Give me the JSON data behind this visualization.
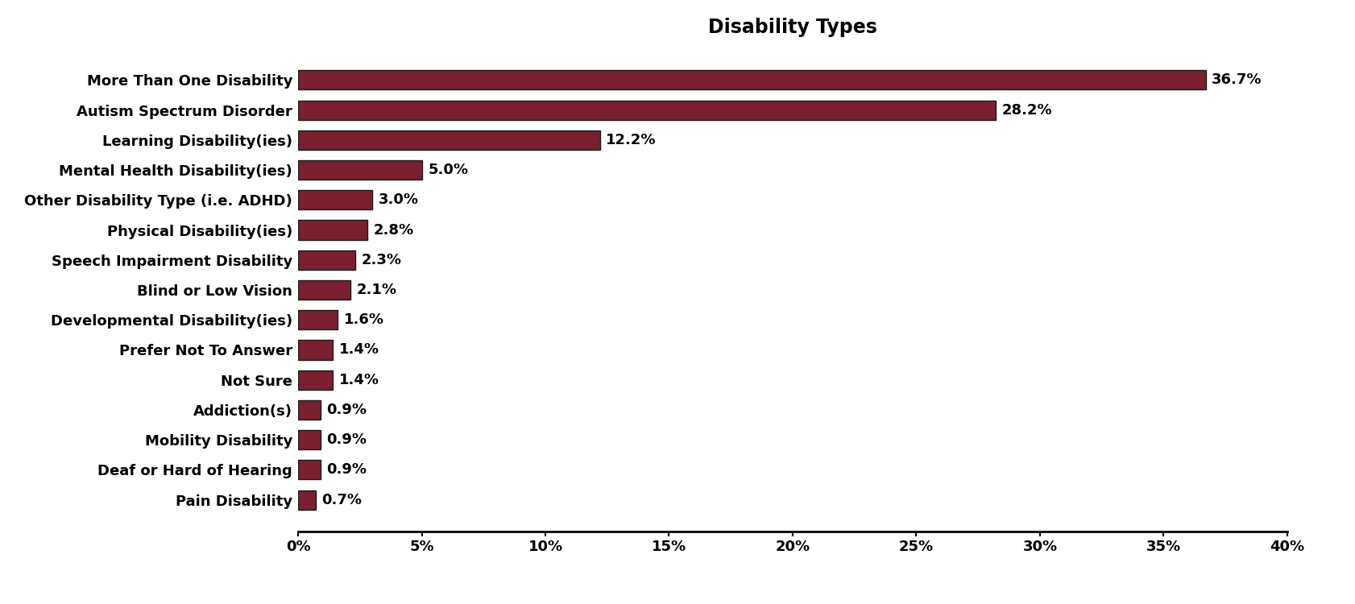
{
  "title": "Disability Types",
  "categories": [
    "Pain Disability",
    "Deaf or Hard of Hearing",
    "Mobility Disability",
    "Addiction(s)",
    "Not Sure",
    "Prefer Not To Answer",
    "Developmental Disability(ies)",
    "Blind or Low Vision",
    "Speech Impairment Disability",
    "Physical Disability(ies)",
    "Other Disability Type (i.e. ADHD)",
    "Mental Health Disability(ies)",
    "Learning Disability(ies)",
    "Autism Spectrum Disorder",
    "More Than One Disability"
  ],
  "values": [
    0.7,
    0.9,
    0.9,
    0.9,
    1.4,
    1.4,
    1.6,
    2.1,
    2.3,
    2.8,
    3.0,
    5.0,
    12.2,
    28.2,
    36.7
  ],
  "labels": [
    "0.7%",
    "0.9%",
    "0.9%",
    "0.9%",
    "1.4%",
    "1.4%",
    "1.6%",
    "2.1%",
    "2.3%",
    "2.8%",
    "3.0%",
    "5.0%",
    "12.2%",
    "28.2%",
    "36.7%"
  ],
  "bar_color": "#7b2030",
  "bar_edgecolor": "#1a1a1a",
  "background_color": "#ffffff",
  "title_fontsize": 17,
  "label_fontsize": 13,
  "tick_fontsize": 13,
  "xlim": [
    0,
    40
  ],
  "xticks": [
    0,
    5,
    10,
    15,
    20,
    25,
    30,
    35,
    40
  ],
  "xtick_labels": [
    "0%",
    "5%",
    "10%",
    "15%",
    "20%",
    "25%",
    "30%",
    "35%",
    "40%"
  ]
}
